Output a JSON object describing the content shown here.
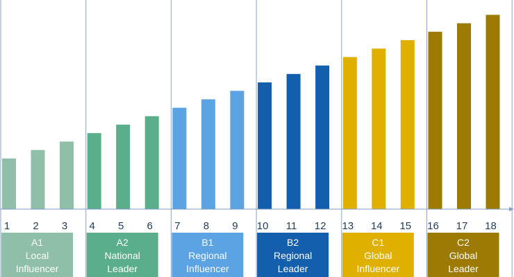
{
  "chart_data": {
    "type": "bar",
    "title": "",
    "xlabel": "",
    "ylabel": "",
    "grid": false,
    "categories": [
      "1",
      "2",
      "3",
      "4",
      "5",
      "6",
      "7",
      "8",
      "9",
      "10",
      "11",
      "12",
      "13",
      "14",
      "15",
      "16",
      "17",
      "18"
    ],
    "values": [
      6,
      7,
      8,
      9,
      10,
      11,
      12,
      13,
      14,
      15,
      16,
      17,
      18,
      19,
      20,
      21,
      22,
      23
    ],
    "ylim": [
      0,
      25
    ],
    "groups": [
      {
        "code": "A1",
        "line1": "Local",
        "line2": "Influencer",
        "color": "#8fbfa8",
        "levels": [
          1,
          2,
          3
        ]
      },
      {
        "code": "A2",
        "line1": "National",
        "line2": "Leader",
        "color": "#5aae8c",
        "levels": [
          4,
          5,
          6
        ]
      },
      {
        "code": "B1",
        "line1": "Regional",
        "line2": "Influencer",
        "color": "#5ba3e3",
        "levels": [
          7,
          8,
          9
        ]
      },
      {
        "code": "B2",
        "line1": "Regional",
        "line2": "Leader",
        "color": "#135fae",
        "levels": [
          10,
          11,
          12
        ]
      },
      {
        "code": "C1",
        "line1": "Global",
        "line2": "Influencer",
        "color": "#e0b000",
        "levels": [
          13,
          14,
          15
        ]
      },
      {
        "code": "C2",
        "line1": "Global",
        "line2": "Leader",
        "color": "#9c7a04",
        "levels": [
          16,
          17,
          18
        ]
      }
    ],
    "colors": {
      "axis": "#7f9dc0",
      "divider": "#8aa4bf",
      "tick_text": "#1f3b5c",
      "label_text": "#ffffff"
    }
  }
}
